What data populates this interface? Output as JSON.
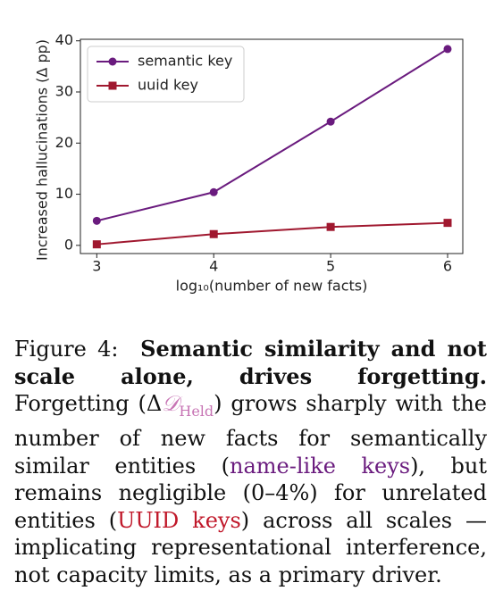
{
  "chart_data": {
    "type": "line",
    "x": [
      3,
      4,
      5,
      6
    ],
    "xlabel": "log₁₀(number of new facts)",
    "ylabel": "Increased hallucinations (Δ pp)",
    "xlim": [
      2.86,
      6.13
    ],
    "ylim": [
      -1.6,
      40.3
    ],
    "xticks": [
      3,
      4,
      5,
      6
    ],
    "yticks": [
      0,
      10,
      20,
      30,
      40
    ],
    "grid": false,
    "legend": "upper-left",
    "series": [
      {
        "name": "semantic key",
        "color": "#6a1b7e",
        "marker": "circle",
        "values": [
          4.8,
          10.4,
          24.2,
          38.4
        ]
      },
      {
        "name": "uuid key",
        "color": "#a0182f",
        "marker": "square",
        "values": [
          0.2,
          2.2,
          3.6,
          4.4
        ]
      }
    ]
  },
  "caption": {
    "parts": [
      "Figure 4:",
      "Semantic similarity and not scale alone, drives forgetting.",
      "Forgetting (Δ",
      "𝒟",
      "Held",
      ") grows sharply with the number of new facts for semantically similar entities (",
      "name-like keys",
      "), but remains negligible (0–4%) for unrelated entities (",
      "UUID keys",
      ") across all scales — implicating representational interference, not capacity limits, as a primary driver."
    ]
  }
}
